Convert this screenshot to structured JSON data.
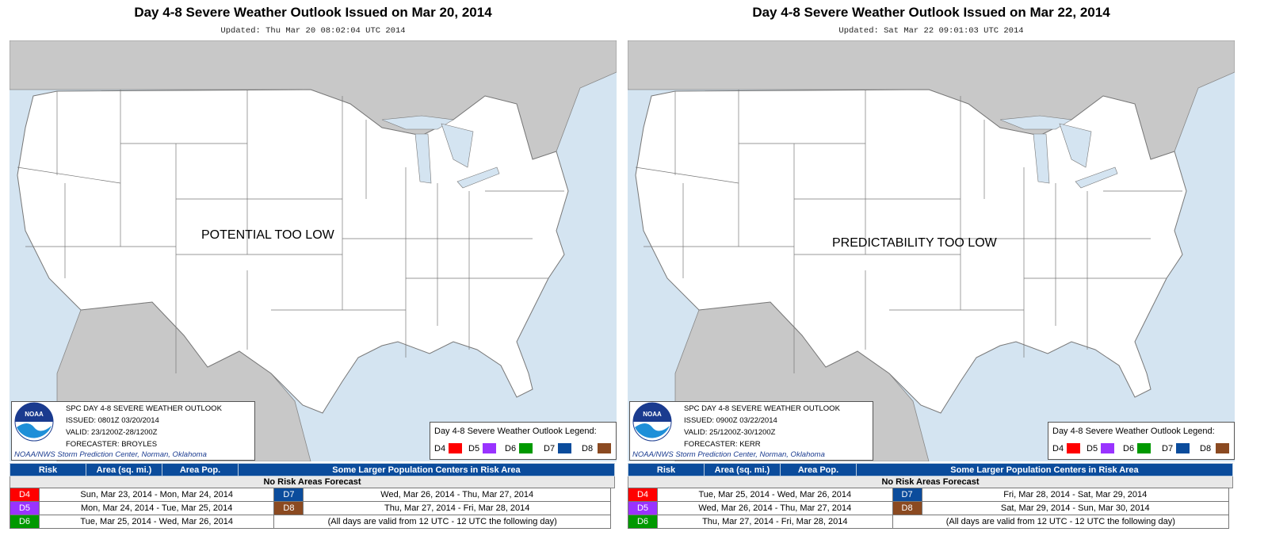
{
  "panels": [
    {
      "title": "Day 4-8 Severe Weather Outlook Issued on Mar 20, 2014",
      "updated": "Updated: Thu Mar 20 08:02:04 UTC 2014",
      "map_label": "POTENTIAL TOO LOW",
      "info": {
        "line1": "SPC DAY 4-8 SEVERE WEATHER OUTLOOK",
        "line2": "ISSUED: 0801Z 03/20/2014",
        "line3": "VALID: 23/1200Z-28/1200Z",
        "line4": "FORECASTER: BROYLES",
        "credit": "NOAA/NWS Storm Prediction Center, Norman, Oklahoma",
        "logo_text": "NOAA"
      },
      "legend": {
        "title": "Day 4-8 Severe Weather Outlook Legend:",
        "items": [
          {
            "label": "D4",
            "color": "#ff0000"
          },
          {
            "label": "D5",
            "color": "#9933ff"
          },
          {
            "label": "D6",
            "color": "#009900"
          },
          {
            "label": "D7",
            "color": "#0b4c9c"
          },
          {
            "label": "D8",
            "color": "#8b4a21"
          }
        ]
      },
      "table": {
        "headers": [
          "Risk",
          "Area (sq. mi.)",
          "Area Pop.",
          "Some Larger Population Centers in Risk Area"
        ],
        "no_risk": "No Risk Areas Forecast"
      },
      "days": {
        "d4": {
          "code": "D4",
          "range": "Sun, Mar 23, 2014 - Mon, Mar 24, 2014"
        },
        "d5": {
          "code": "D5",
          "range": "Mon, Mar 24, 2014 - Tue, Mar 25, 2014"
        },
        "d6": {
          "code": "D6",
          "range": "Tue, Mar 25, 2014 - Wed, Mar 26, 2014"
        },
        "d7": {
          "code": "D7",
          "range": "Wed, Mar 26, 2014 - Thu, Mar 27, 2014"
        },
        "d8": {
          "code": "D8",
          "range": "Thu, Mar 27, 2014 - Fri, Mar 28, 2014"
        },
        "note": "(All days are valid from 12 UTC - 12 UTC the following day)"
      }
    },
    {
      "title": "Day 4-8 Severe Weather Outlook Issued on Mar 22, 2014",
      "updated": "Updated: Sat Mar 22 09:01:03 UTC 2014",
      "map_label": "PREDICTABILITY TOO LOW",
      "info": {
        "line1": "SPC DAY 4-8 SEVERE WEATHER OUTLOOK",
        "line2": "ISSUED: 0900Z 03/22/2014",
        "line3": "VALID: 25/1200Z-30/1200Z",
        "line4": "FORECASTER: KERR",
        "credit": "NOAA/NWS Storm Prediction Center, Norman, Oklahoma",
        "logo_text": "NOAA"
      },
      "legend": {
        "title": "Day 4-8 Severe Weather Outlook Legend:",
        "items": [
          {
            "label": "D4",
            "color": "#ff0000"
          },
          {
            "label": "D5",
            "color": "#9933ff"
          },
          {
            "label": "D6",
            "color": "#009900"
          },
          {
            "label": "D7",
            "color": "#0b4c9c"
          },
          {
            "label": "D8",
            "color": "#8b4a21"
          }
        ]
      },
      "table": {
        "headers": [
          "Risk",
          "Area (sq. mi.)",
          "Area Pop.",
          "Some Larger Population Centers in Risk Area"
        ],
        "no_risk": "No Risk Areas Forecast"
      },
      "days": {
        "d4": {
          "code": "D4",
          "range": "Tue, Mar 25, 2014 - Wed, Mar 26, 2014"
        },
        "d5": {
          "code": "D5",
          "range": "Wed, Mar 26, 2014 - Thu, Mar 27, 2014"
        },
        "d6": {
          "code": "D6",
          "range": "Thu, Mar 27, 2014 - Fri, Mar 28, 2014"
        },
        "d7": {
          "code": "D7",
          "range": "Fri, Mar 28, 2014 - Sat, Mar 29, 2014"
        },
        "d8": {
          "code": "D8",
          "range": "Sat, Mar 29, 2014 - Sun, Mar 30, 2014"
        },
        "note": "(All days are valid from 12 UTC - 12 UTC the following day)"
      }
    }
  ],
  "colors": {
    "water": "#d4e4f1",
    "land_foreign": "#c8c8c8",
    "land_us": "#ffffff",
    "header_blue": "#0b4c9c",
    "d4": "#ff0000",
    "d5": "#9933ff",
    "d6": "#009900",
    "d7": "#0b4c9c",
    "d8": "#8b4a21"
  }
}
